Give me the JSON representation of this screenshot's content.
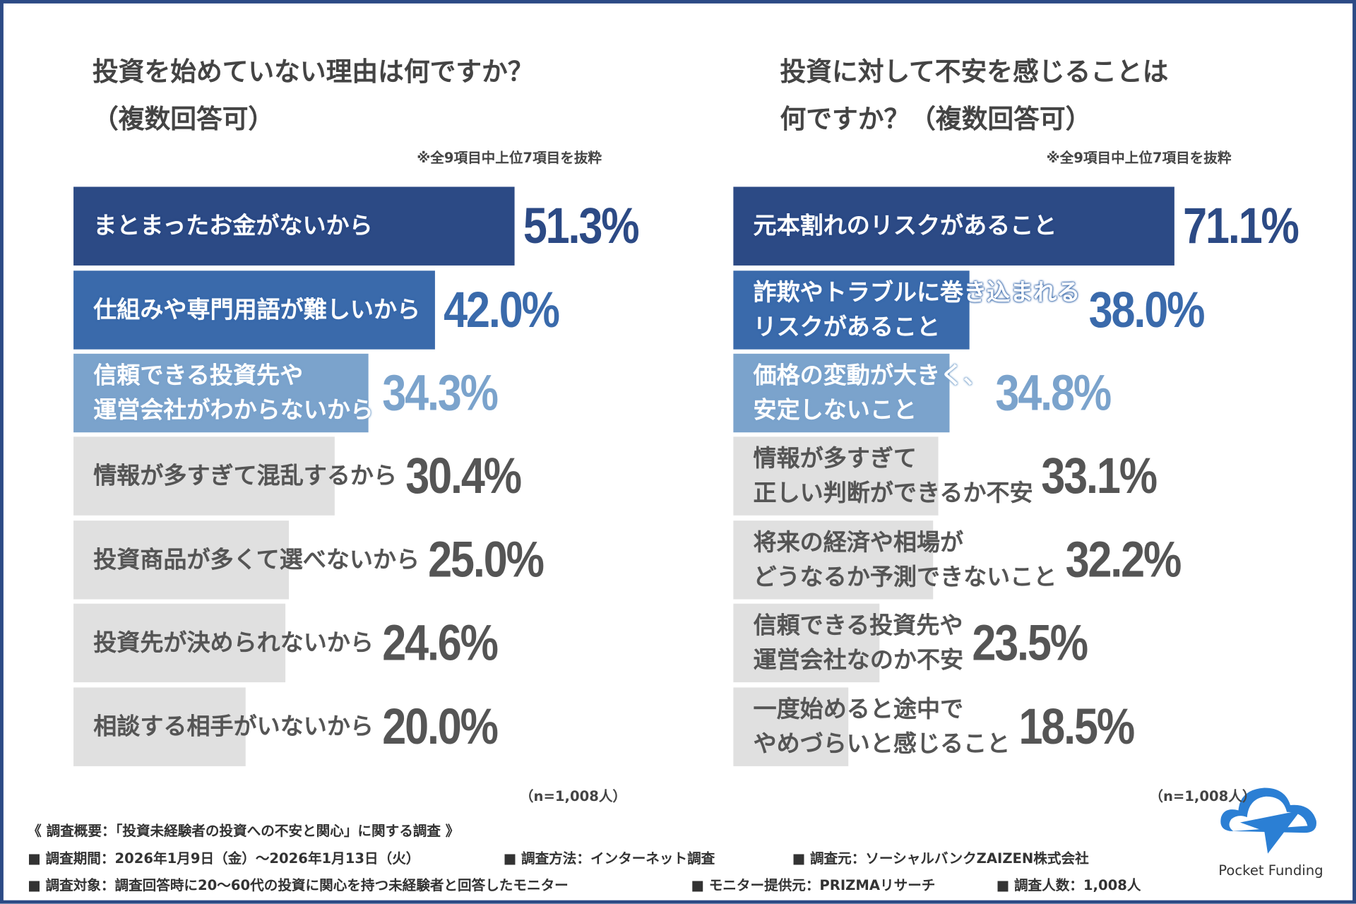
{
  "chart_data": [
    {
      "type": "bar",
      "title": "投資を始めていない理由は何ですか？\n（複数回答可）",
      "note": "※全9項目中上位7項目を抜粋",
      "sample": "（n=1,008人）",
      "categories": [
        "まとまったお金がないから",
        "仕組みや専門用語が難しいから",
        "信頼できる投資先や\n運営会社がわからないから",
        "情報が多すぎて混乱するから",
        "投資商品が多くて選べないから",
        "投資先が決められないから",
        "相談する相手がいないから"
      ],
      "values": [
        51.3,
        42.0,
        34.3,
        30.4,
        25.0,
        24.6,
        20.0
      ],
      "value_labels": [
        "51.3%",
        "42.0%",
        "34.3%",
        "30.4%",
        "25.0%",
        "24.6%",
        "20.0%"
      ],
      "colors": [
        "#2c4a85",
        "#3a6aab",
        "#7ba3cc",
        "#e0e0e0",
        "#e0e0e0",
        "#e0e0e0",
        "#e0e0e0"
      ],
      "label_colors": [
        "#2c4a85",
        "#3a6aab",
        "#7ba3cc",
        "#555555",
        "#555555",
        "#555555",
        "#555555"
      ]
    },
    {
      "type": "bar",
      "title": "投資に対して不安を感じることは\n何ですか？（複数回答可）",
      "note": "※全9項目中上位7項目を抜粋",
      "sample": "（n=1,008人）",
      "categories": [
        "元本割れのリスクがあること",
        "詐欺やトラブルに巻き込まれる\nリスクがあること",
        "価格の変動が大きく、\n安定しないこと",
        "情報が多すぎて\n正しい判断ができるか不安",
        "将来の経済や相場が\nどうなるか予測できないこと",
        "信頼できる投資先や\n運営会社なのか不安",
        "一度始めると途中で\nやめづらいと感じること"
      ],
      "values": [
        71.1,
        38.0,
        34.8,
        33.1,
        32.2,
        23.5,
        18.5
      ],
      "value_labels": [
        "71.1%",
        "38.0%",
        "34.8%",
        "33.1%",
        "32.2%",
        "23.5%",
        "18.5%"
      ],
      "colors": [
        "#2c4a85",
        "#3a6aab",
        "#7ba3cc",
        "#e0e0e0",
        "#e0e0e0",
        "#e0e0e0",
        "#e0e0e0"
      ],
      "label_colors": [
        "#2c4a85",
        "#3a6aab",
        "#7ba3cc",
        "#555555",
        "#555555",
        "#555555",
        "#555555"
      ]
    }
  ],
  "survey": {
    "heading": "《 調査概要：「投資未経験者の投資への不安と関心」に関する調査 》",
    "rows": [
      [
        "■ 調査期間：2026年1月9日（金）～2026年1月13日（火）",
        "■ 調査方法：インターネット調査",
        "■ 調査元：ソーシャルバンクZAIZEN株式会社"
      ],
      [
        "■ 調査対象：調査回答時に20～60代の投資に関心を持つ未経験者と回答したモニター",
        "■ モニター提供元：PRIZMAリサーチ",
        "■ 調査人数：1,008人"
      ]
    ]
  },
  "logo": "Pocket Funding"
}
